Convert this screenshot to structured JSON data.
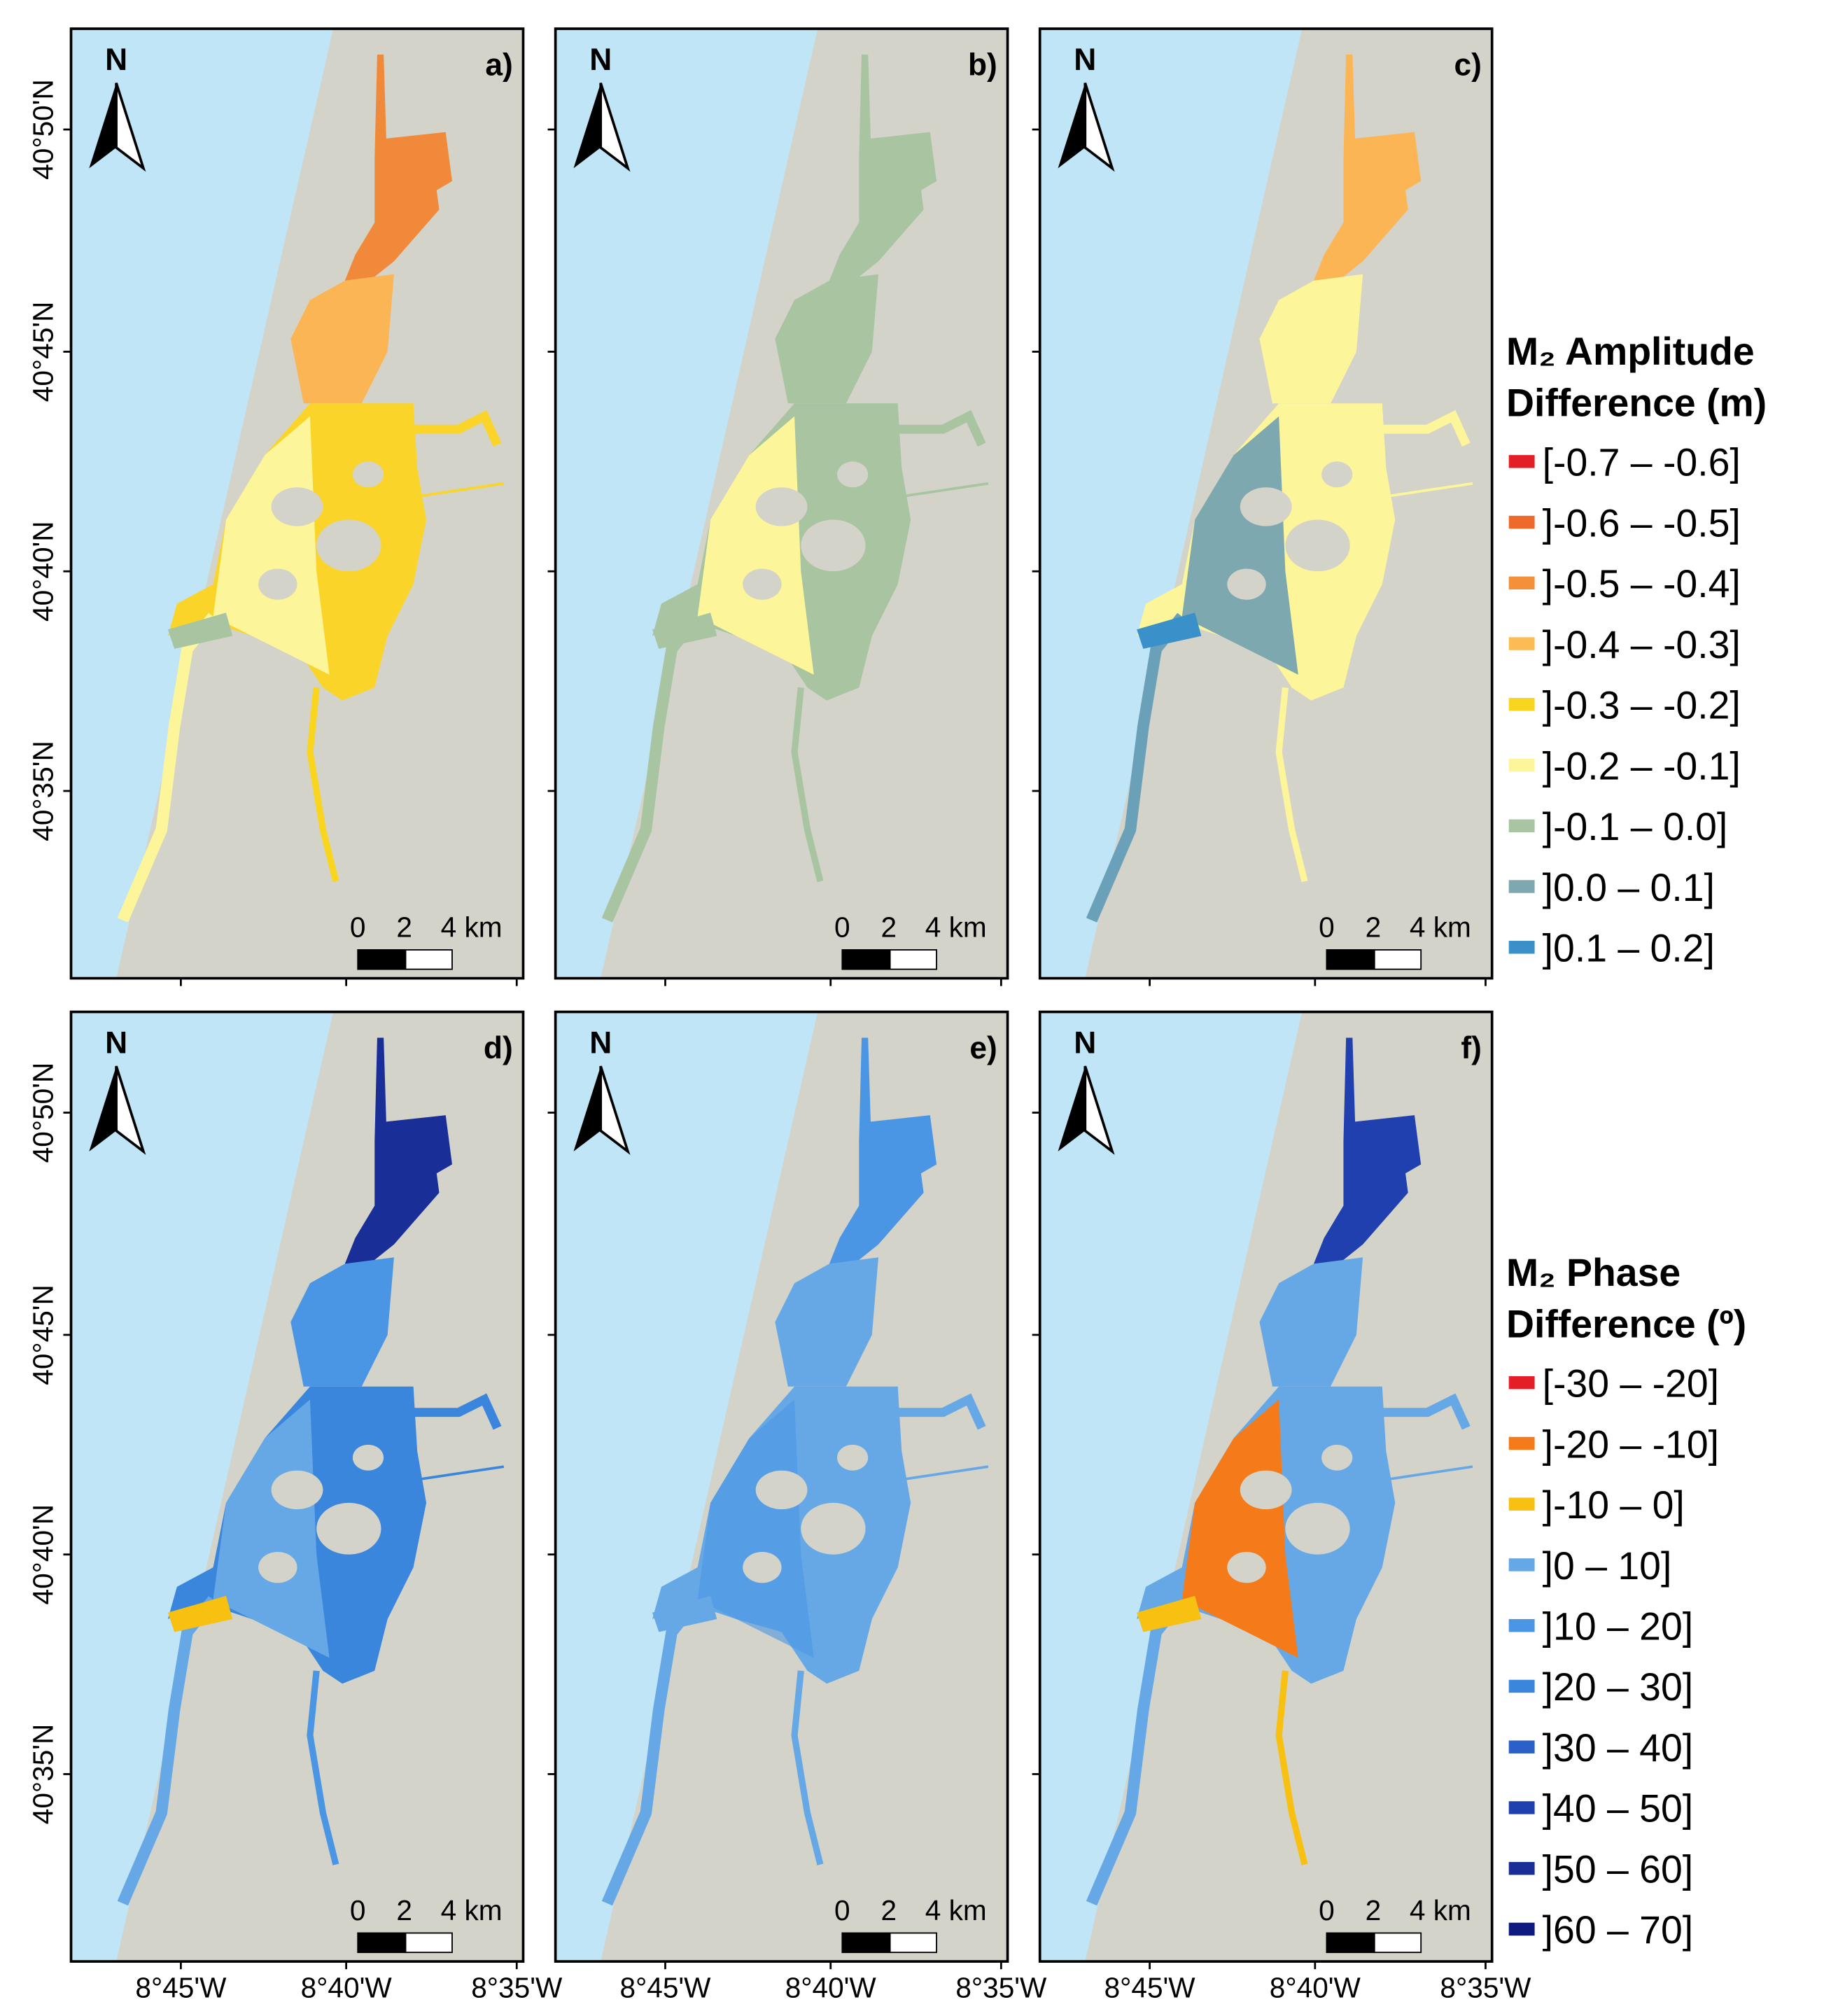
{
  "panels": [
    "a)",
    "b)",
    "c)",
    "d)",
    "e)",
    "f)"
  ],
  "north": "N",
  "scale": [
    "0",
    "2",
    "4 km"
  ],
  "lat_labels": [
    "40°50'N",
    "40°45'N",
    "40°40'N",
    "40°35'N"
  ],
  "lon_labels": [
    "8°45'W",
    "8°40'W",
    "8°35'W"
  ],
  "legends": [
    {
      "title": [
        "M₂ Amplitude",
        "Difference (m)"
      ],
      "entries": [
        {
          "label": "[-0.7 – -0.6]",
          "color": "#e41e26"
        },
        {
          "label": "]-0.6 – -0.5]",
          "color": "#ef6a2a"
        },
        {
          "label": "]-0.5 – -0.4]",
          "color": "#f4903a"
        },
        {
          "label": "]-0.4 – -0.3]",
          "color": "#fbbc55"
        },
        {
          "label": "]-0.3 – -0.2]",
          "color": "#f9d51e"
        },
        {
          "label": "]-0.2 – -0.1]",
          "color": "#fdf59a"
        },
        {
          "label": "]-0.1 – 0.0]",
          "color": "#a8c4a0"
        },
        {
          "label": "]0.0 – 0.1]",
          "color": "#7ea8b0"
        },
        {
          "label": "]0.1 – 0.2]",
          "color": "#3a90c8"
        }
      ]
    },
    {
      "title": [
        "M₂ Phase",
        "Difference (º)"
      ],
      "entries": [
        {
          "label": "[-30 – -20]",
          "color": "#e41e26"
        },
        {
          "label": "]-20 – -10]",
          "color": "#f57a1a"
        },
        {
          "label": "]-10 – 0]",
          "color": "#f8c010"
        },
        {
          "label": "]0 – 10]",
          "color": "#66a8e6"
        },
        {
          "label": "]10 – 20]",
          "color": "#4a96e4"
        },
        {
          "label": "]20 – 30]",
          "color": "#3a86dc"
        },
        {
          "label": "]30 – 40]",
          "color": "#2a60c8"
        },
        {
          "label": "]40 – 50]",
          "color": "#2040b0"
        },
        {
          "label": "]50 – 60]",
          "color": "#1a2e98"
        },
        {
          "label": "]60 – 70]",
          "color": "#0e1a80"
        }
      ]
    }
  ]
}
